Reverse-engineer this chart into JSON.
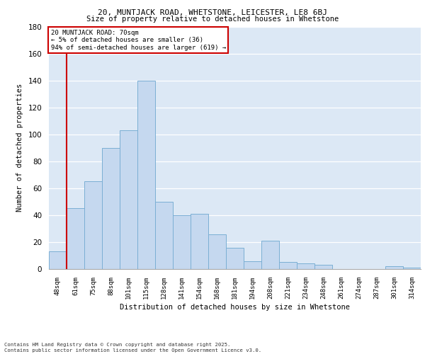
{
  "title1": "20, MUNTJACK ROAD, WHETSTONE, LEICESTER, LE8 6BJ",
  "title2": "Size of property relative to detached houses in Whetstone",
  "xlabel": "Distribution of detached houses by size in Whetstone",
  "ylabel": "Number of detached properties",
  "bar_color": "#c5d8ef",
  "bar_edge_color": "#7bafd4",
  "background_color": "#dce8f5",
  "annotation_text": "20 MUNTJACK ROAD: 70sqm\n← 5% of detached houses are smaller (36)\n94% of semi-detached houses are larger (619) →",
  "annotation_box_color": "#cc0000",
  "footnote": "Contains HM Land Registry data © Crown copyright and database right 2025.\nContains public sector information licensed under the Open Government Licence v3.0.",
  "categories": [
    "48sqm",
    "61sqm",
    "75sqm",
    "88sqm",
    "101sqm",
    "115sqm",
    "128sqm",
    "141sqm",
    "154sqm",
    "168sqm",
    "181sqm",
    "194sqm",
    "208sqm",
    "221sqm",
    "234sqm",
    "248sqm",
    "261sqm",
    "274sqm",
    "287sqm",
    "301sqm",
    "314sqm"
  ],
  "values": [
    13,
    45,
    65,
    90,
    103,
    140,
    50,
    40,
    41,
    26,
    16,
    6,
    21,
    5,
    4,
    3,
    0,
    0,
    0,
    2,
    1
  ],
  "red_line_x": 0.5,
  "ylim": [
    0,
    180
  ],
  "yticks": [
    0,
    20,
    40,
    60,
    80,
    100,
    120,
    140,
    160,
    180
  ]
}
